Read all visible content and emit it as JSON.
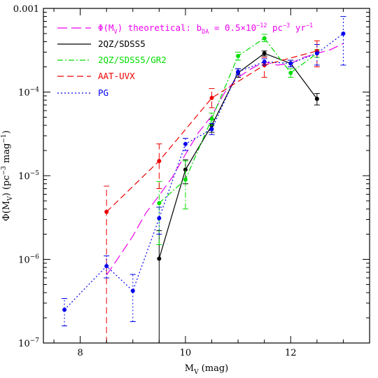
{
  "chart_data": {
    "type": "line",
    "xlabel": "M",
    "xlabel_sub": "V",
    "xlabel_unit": " (mag)",
    "ylabel": "Φ(M",
    "ylabel_sub": "V",
    "ylabel_rest": ") (pc",
    "ylabel_sup1": "−3",
    "ylabel_mid": " mag",
    "ylabel_sup2": "−1",
    "ylabel_end": ")",
    "xlim": [
      7.3,
      13.5
    ],
    "ylim_log10": [
      -7,
      -3
    ],
    "y_scale": "log",
    "x_ticks": [
      8,
      10,
      12
    ],
    "x_tick_labels": [
      "8",
      "10",
      "12"
    ],
    "y_ticks_log10": [
      -7,
      -6,
      -5,
      -4,
      -3
    ],
    "y_tick_labels": [
      {
        "base": "10",
        "exp": "-7"
      },
      {
        "base": "10",
        "exp": "-6"
      },
      {
        "base": "10",
        "exp": "-5"
      },
      {
        "base": "10",
        "exp": "-4"
      },
      {
        "base": "",
        "exp": "",
        "plain": "0.001"
      }
    ],
    "legend_position": "top-left",
    "series": [
      {
        "name": "theoretical",
        "legend_text": "Φ(M",
        "legend_sub": "V",
        "legend_rest": ") theoretical: b",
        "legend_sub2": "DA",
        "legend_rest2": " = 0.5×10",
        "legend_sup": "−12",
        "legend_rest3": " pc",
        "legend_sup2": "−3",
        "legend_rest4": " yr",
        "legend_sup3": "−1",
        "color": "#ee00ee",
        "dash": "14,6",
        "x": [
          8.5,
          8.75,
          9.0,
          9.25,
          9.5,
          9.75,
          10.0,
          10.25,
          10.5,
          10.75,
          11.0,
          11.25,
          11.5,
          11.75,
          12.0,
          12.25,
          12.5,
          12.75,
          13.0
        ],
        "y": [
          6.5e-07,
          1.1e-06,
          1.9e-06,
          3.6e-06,
          5.8e-06,
          9.6e-06,
          1.8e-05,
          3.3e-05,
          5.2e-05,
          0.0001,
          0.00015,
          0.00019,
          0.00023,
          0.00021,
          0.00022,
          0.00026,
          0.00029,
          0.00032,
          0.00038
        ],
        "markers": false
      },
      {
        "name": "2QZ/SDSS5",
        "legend_text": "2QZ/SDSS5",
        "color": "#000000",
        "dash": "",
        "x": [
          9.5,
          10.0,
          10.5,
          11.0,
          11.5,
          12.0,
          12.5
        ],
        "y": [
          1.02e-06,
          1.18e-05,
          4e-05,
          0.00017,
          0.00029,
          0.00022,
          8.3e-05
        ],
        "err_lo": [
          1e-07,
          8e-06,
          3.3e-05,
          0.00015,
          0.00027,
          0.0002,
          7e-05
        ],
        "err_hi": [
          2.2e-06,
          1.55e-05,
          4.7e-05,
          0.00019,
          0.00031,
          0.00024,
          9.6e-05
        ],
        "markers": true
      },
      {
        "name": "2QZ/SDSS5/GR2",
        "legend_text": "2QZ/SDSS5/GR2",
        "color": "#00dd00",
        "dash": "8,3,2,3",
        "x": [
          9.5,
          10.0,
          10.5,
          11.0,
          11.5,
          12.0,
          12.5
        ],
        "y": [
          4.7e-06,
          9e-06,
          4.8e-05,
          0.00027,
          0.00044,
          0.00017,
          0.00029
        ],
        "err_lo": [
          1.5e-06,
          4e-06,
          4e-05,
          0.00024,
          0.0004,
          0.00015,
          0.00026
        ],
        "err_hi": [
          8.5e-06,
          1.5e-05,
          5.6e-05,
          0.0003,
          0.00049,
          0.00019,
          0.00032
        ],
        "markers": true
      },
      {
        "name": "AAT-UVX",
        "legend_text": "AAT-UVX",
        "color": "#ee0000",
        "dash": "9,5",
        "x": [
          8.5,
          9.5,
          10.5,
          11.5,
          12.5
        ],
        "y": [
          3.7e-06,
          1.5e-05,
          8.5e-05,
          0.00021,
          0.00031
        ],
        "err_lo": [
          1e-07,
          7e-06,
          6.5e-05,
          0.00015,
          0.0002
        ],
        "err_hi": [
          7.5e-06,
          2.4e-05,
          0.00011,
          0.00026,
          0.00041
        ],
        "markers": true
      },
      {
        "name": "PG",
        "legend_text": "PG",
        "color": "#0000ee",
        "dash": "2,3",
        "x": [
          7.7,
          8.5,
          9.0,
          9.5,
          10.0,
          10.5,
          11.0,
          11.5,
          12.0,
          12.5,
          13.0
        ],
        "y": [
          2.5e-07,
          8.3e-07,
          4.2e-07,
          3.1e-06,
          2.4e-05,
          3.6e-05,
          0.000175,
          0.00023,
          0.00022,
          0.00029,
          0.0005
        ],
        "err_lo": [
          1.6e-07,
          6e-07,
          1.8e-07,
          2e-06,
          2e-05,
          3.1e-05,
          0.00016,
          0.00021,
          0.0002,
          0.00021,
          0.00021
        ],
        "err_hi": [
          3.4e-07,
          1.1e-06,
          6.6e-07,
          4.2e-06,
          2.8e-05,
          4.2e-05,
          0.00019,
          0.00025,
          0.00024,
          0.00037,
          0.0008
        ],
        "markers": true
      }
    ]
  }
}
